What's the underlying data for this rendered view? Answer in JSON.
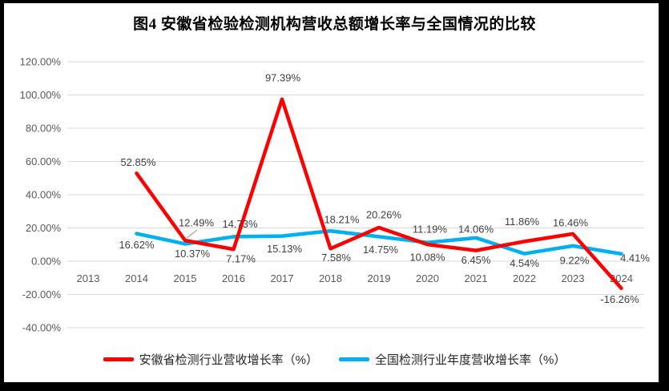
{
  "title": "图4 安徽省检验检测机构营收总额增长率与全国情况的比较",
  "colors": {
    "anhui_series": "#FF0000",
    "national_series": "#00B0F0",
    "gridline": "#D9D9D9",
    "axis_text": "#595959",
    "data_label_text": "#3F3F3F",
    "frame": "#000000",
    "background": "#FFFFFF",
    "leader_line": "#A6A6A6"
  },
  "chart_data": {
    "type": "line",
    "title": "图4 安徽省检验检测机构营收总额增长率与全国情况的比较",
    "xlabel": "",
    "ylabel": "",
    "grid": true,
    "legend_position": "bottom",
    "ylim": [
      -40,
      120
    ],
    "ytick_step": 20,
    "ytick_values": [
      120,
      100,
      80,
      60,
      40,
      20,
      0,
      -20,
      -40
    ],
    "y_ticks": [
      "120.00%",
      "100.00%",
      "80.00%",
      "60.00%",
      "40.00%",
      "20.00%",
      "0.00%",
      "-20.00%",
      "-40.00%"
    ],
    "categories": [
      "2013",
      "2014",
      "2015",
      "2016",
      "2017",
      "2018",
      "2019",
      "2020",
      "2021",
      "2022",
      "2023",
      "2024"
    ],
    "series": [
      {
        "name": "安徽省检测行业营收增长率（%）",
        "color": "#FF0000",
        "values": [
          null,
          52.85,
          12.49,
          7.17,
          97.39,
          7.58,
          20.26,
          10.08,
          6.45,
          11.86,
          16.46,
          -16.26
        ],
        "labels": [
          "",
          "52.85%",
          "12.49%",
          "7.17%",
          "97.39%",
          "7.58%",
          "20.26%",
          "10.08%",
          "6.45%",
          "11.86%",
          "16.46%",
          "-16.26%"
        ],
        "label_offsets": [
          null,
          [
            2,
            -14
          ],
          [
            14,
            -22
          ],
          [
            9,
            12
          ],
          [
            1,
            -27
          ],
          [
            7,
            11
          ],
          [
            6,
            -16
          ],
          [
            0,
            16
          ],
          [
            0,
            12
          ],
          [
            -3,
            -25
          ],
          [
            -3,
            -14
          ],
          [
            -2,
            14
          ]
        ]
      },
      {
        "name": "全国检测行业年度营收增长率（%）",
        "color": "#00B0F0",
        "values": [
          null,
          16.62,
          10.37,
          14.73,
          15.13,
          18.21,
          14.75,
          11.19,
          14.06,
          4.54,
          9.22,
          4.41
        ],
        "labels": [
          "",
          "16.62%",
          "10.37%",
          "14.73%",
          "15.13%",
          "18.21%",
          "14.75%",
          "11.19%",
          "14.06%",
          "4.54%",
          "9.22%",
          "4.41%"
        ],
        "label_offsets": [
          null,
          [
            0,
            14
          ],
          [
            9,
            12
          ],
          [
            8,
            -16
          ],
          [
            3,
            16
          ],
          [
            14,
            -14
          ],
          [
            2,
            16
          ],
          [
            3,
            -17
          ],
          [
            0,
            -11
          ],
          [
            0,
            12
          ],
          [
            2,
            18
          ],
          [
            17,
            5
          ]
        ]
      }
    ],
    "leader_line": {
      "from": [
        233,
        297
      ],
      "to": [
        246,
        287
      ]
    }
  },
  "legend": {
    "items": [
      {
        "label": "安徽省检测行业营收增长率（%）"
      },
      {
        "label": "全国检测行业年度营收增长率（%）"
      }
    ]
  }
}
